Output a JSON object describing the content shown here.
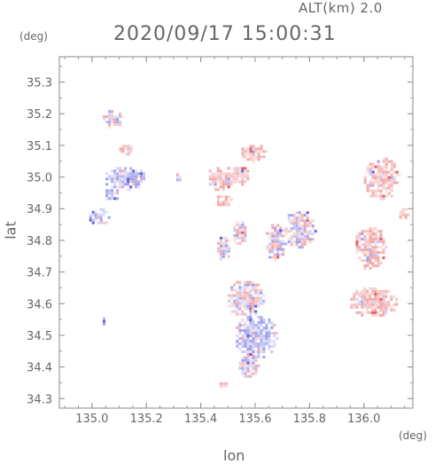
{
  "header": {
    "altitude": "ALT(km)  2.0",
    "timestamp": "2020/09/17 15:00:31"
  },
  "colors": {
    "positive": "#f4a0a0",
    "negative": "#a8a8f0",
    "axis": "#888888"
  },
  "chart_data": {
    "type": "heatmap",
    "title": "2020/09/17 15:00:31",
    "subtitle": "ALT(km)  2.0",
    "xlabel": "lon",
    "ylabel": "lat",
    "xunit": "(deg)",
    "yunit": "(deg)",
    "xlim": [
      134.88,
      136.18
    ],
    "ylim": [
      34.27,
      35.38
    ],
    "xticks": [
      135.0,
      135.2,
      135.4,
      135.6,
      135.8,
      136.0
    ],
    "xtick_labels": [
      "135.0",
      "135.2",
      "135.4",
      "135.6",
      "135.8",
      "136.0"
    ],
    "yticks": [
      34.3,
      34.4,
      34.5,
      34.6,
      34.7,
      34.8,
      34.9,
      35.0,
      35.1,
      35.2,
      35.3
    ],
    "ytick_labels": [
      "34.3",
      "34.4",
      "34.5",
      "34.6",
      "34.7",
      "34.8",
      "34.9",
      "35.0",
      "35.1",
      "35.2",
      "35.3"
    ],
    "regions": [
      {
        "lon": 135.59,
        "lat": 35.08,
        "rlon": 0.05,
        "rlat": 0.03,
        "sign": 1
      },
      {
        "lon": 135.47,
        "lat": 35.0,
        "rlon": 0.05,
        "rlat": 0.04,
        "sign": 1
      },
      {
        "lon": 135.54,
        "lat": 35.01,
        "rlon": 0.04,
        "rlat": 0.03,
        "sign": 1
      },
      {
        "lon": 135.48,
        "lat": 34.93,
        "rlon": 0.03,
        "rlat": 0.02,
        "sign": 1
      },
      {
        "lon": 136.06,
        "lat": 35.0,
        "rlon": 0.07,
        "rlat": 0.07,
        "sign": 1
      },
      {
        "lon": 136.02,
        "lat": 34.78,
        "rlon": 0.06,
        "rlat": 0.07,
        "sign": 1
      },
      {
        "lon": 136.03,
        "lat": 34.61,
        "rlon": 0.09,
        "rlat": 0.05,
        "sign": 1
      },
      {
        "lon": 136.14,
        "lat": 34.89,
        "rlon": 0.02,
        "rlat": 0.02,
        "sign": 1
      },
      {
        "lon": 135.56,
        "lat": 34.62,
        "rlon": 0.07,
        "rlat": 0.06,
        "sign": 0
      },
      {
        "lon": 135.6,
        "lat": 34.5,
        "rlon": 0.08,
        "rlat": 0.07,
        "sign": -1
      },
      {
        "lon": 135.57,
        "lat": 34.41,
        "rlon": 0.04,
        "rlat": 0.04,
        "sign": 0
      },
      {
        "lon": 135.12,
        "lat": 35.0,
        "rlon": 0.08,
        "rlat": 0.04,
        "sign": -1
      },
      {
        "lon": 135.02,
        "lat": 34.88,
        "rlon": 0.04,
        "rlat": 0.03,
        "sign": -1
      },
      {
        "lon": 135.07,
        "lat": 34.95,
        "rlon": 0.03,
        "rlat": 0.02,
        "sign": -1
      },
      {
        "lon": 135.12,
        "lat": 35.09,
        "rlon": 0.03,
        "rlat": 0.02,
        "sign": 1
      },
      {
        "lon": 135.04,
        "lat": 34.55,
        "rlon": 0.01,
        "rlat": 0.015,
        "sign": -1
      },
      {
        "lon": 135.76,
        "lat": 34.84,
        "rlon": 0.06,
        "rlat": 0.06,
        "sign": 0
      },
      {
        "lon": 135.67,
        "lat": 34.8,
        "rlon": 0.04,
        "rlat": 0.06,
        "sign": 0
      },
      {
        "lon": 135.54,
        "lat": 34.83,
        "rlon": 0.03,
        "rlat": 0.04,
        "sign": 0
      },
      {
        "lon": 135.48,
        "lat": 34.78,
        "rlon": 0.03,
        "rlat": 0.04,
        "sign": 0
      },
      {
        "lon": 135.31,
        "lat": 35.0,
        "rlon": 0.01,
        "rlat": 0.02,
        "sign": 0
      },
      {
        "lon": 135.07,
        "lat": 35.19,
        "rlon": 0.04,
        "rlat": 0.03,
        "sign": 0
      },
      {
        "lon": 135.48,
        "lat": 34.35,
        "rlon": 0.03,
        "rlat": 0.01,
        "sign": 0
      }
    ]
  }
}
